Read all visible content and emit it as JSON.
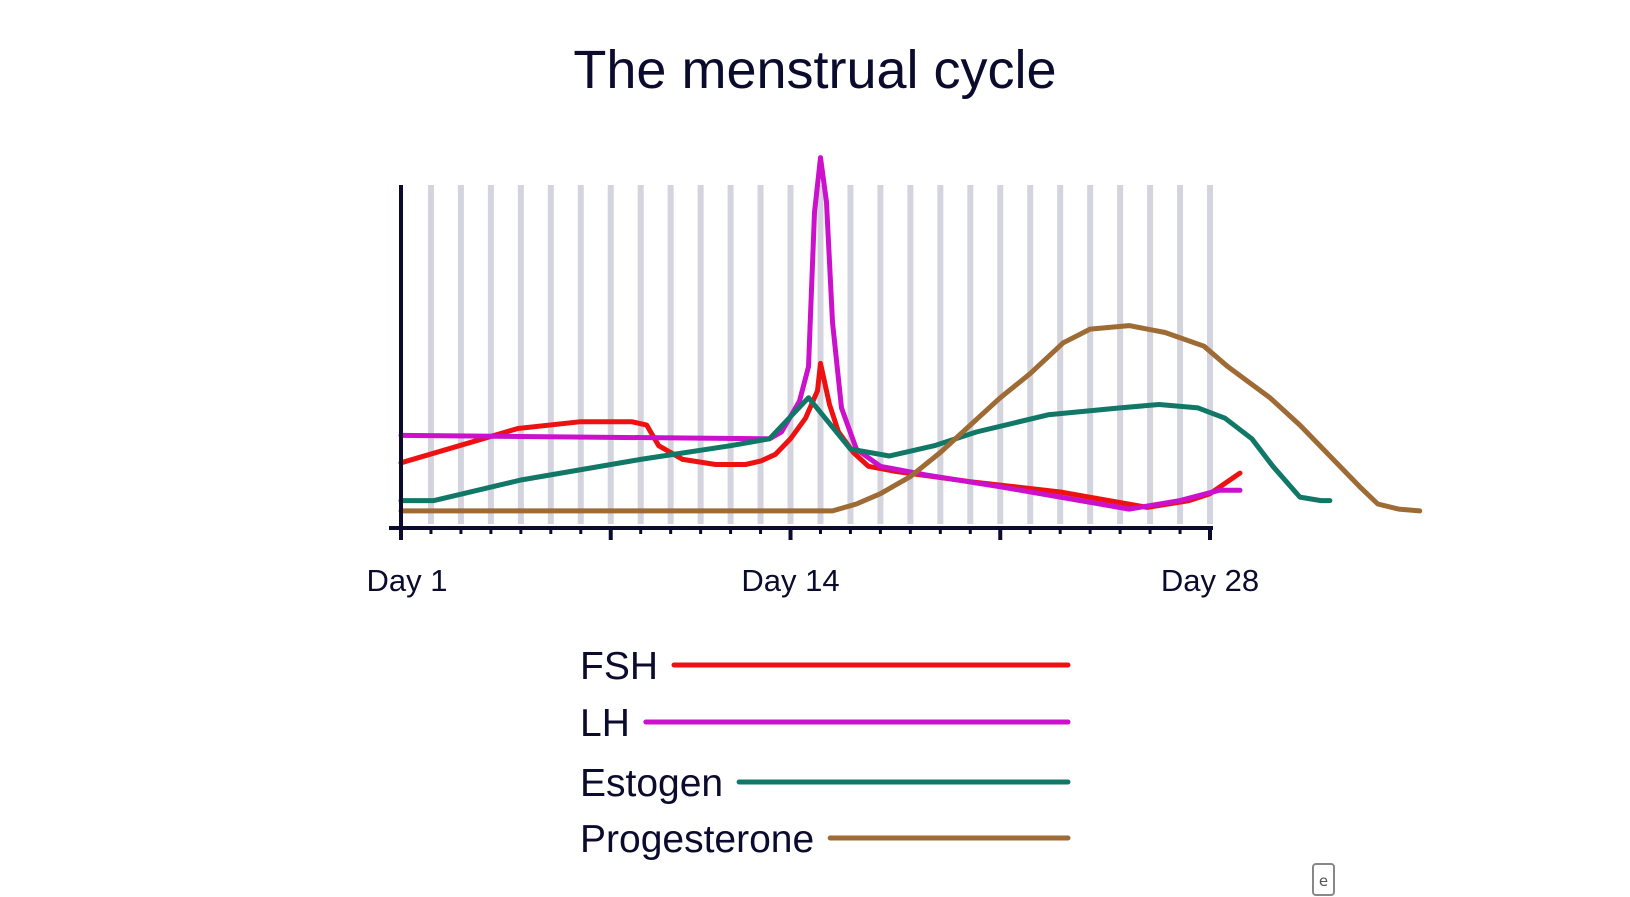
{
  "chart_data": {
    "type": "line",
    "title": "The menstrual cycle",
    "xlabel": "",
    "ylabel": "",
    "xlim": [
      1,
      28
    ],
    "ylim": [
      0,
      100
    ],
    "grid": "vertical",
    "x_tick_labels": [
      {
        "x": 1,
        "label": "Day 1"
      },
      {
        "x": 14,
        "label": "Day 14"
      },
      {
        "x": 28,
        "label": "Day 28"
      }
    ],
    "legend_position": "bottom-center",
    "series": [
      {
        "name": "FSH",
        "color": "#ee1111",
        "points": [
          [
            1,
            19
          ],
          [
            4.9,
            29
          ],
          [
            7,
            31
          ],
          [
            8.7,
            31
          ],
          [
            9.2,
            30
          ],
          [
            9.6,
            24
          ],
          [
            10.4,
            20
          ],
          [
            11.5,
            18.5
          ],
          [
            12.5,
            18.5
          ],
          [
            13,
            19.5
          ],
          [
            13.5,
            21.5
          ],
          [
            14,
            26
          ],
          [
            14.5,
            32
          ],
          [
            14.9,
            40
          ],
          [
            15,
            48
          ],
          [
            15.3,
            36
          ],
          [
            15.6,
            28
          ],
          [
            16.1,
            22
          ],
          [
            16.6,
            18
          ],
          [
            17.5,
            16.5
          ],
          [
            20,
            13.5
          ],
          [
            23,
            10.5
          ],
          [
            25.9,
            6
          ],
          [
            27.3,
            8
          ],
          [
            28,
            10
          ],
          [
            29,
            16
          ]
        ]
      },
      {
        "name": "LH",
        "color": "#cc11cc",
        "points": [
          [
            1,
            27
          ],
          [
            13.3,
            26
          ],
          [
            13.7,
            28
          ],
          [
            14.3,
            37
          ],
          [
            14.6,
            47
          ],
          [
            14.8,
            92
          ],
          [
            15,
            108
          ],
          [
            15.2,
            95
          ],
          [
            15.4,
            60
          ],
          [
            15.7,
            35
          ],
          [
            16.2,
            23
          ],
          [
            17,
            18
          ],
          [
            18.5,
            15.5
          ],
          [
            21,
            12
          ],
          [
            23,
            9
          ],
          [
            25.3,
            5.5
          ],
          [
            27,
            8
          ],
          [
            28.3,
            11
          ],
          [
            29,
            11
          ]
        ]
      },
      {
        "name": "Estogen",
        "color": "#117766",
        "points": [
          [
            1,
            8
          ],
          [
            2.1,
            8
          ],
          [
            5,
            14
          ],
          [
            9,
            20
          ],
          [
            12,
            24
          ],
          [
            13.3,
            26
          ],
          [
            14.6,
            38
          ],
          [
            16,
            23
          ],
          [
            17.3,
            21
          ],
          [
            18.8,
            24
          ],
          [
            20.2,
            28
          ],
          [
            22.6,
            33
          ],
          [
            25,
            35
          ],
          [
            26.3,
            36
          ],
          [
            27.6,
            35
          ],
          [
            28.5,
            32
          ],
          [
            29.4,
            26
          ],
          [
            30.1,
            18
          ],
          [
            31,
            9
          ],
          [
            31.7,
            8
          ],
          [
            32,
            8
          ]
        ]
      },
      {
        "name": "Progesterone",
        "color": "#9e6b35",
        "points": [
          [
            1,
            5
          ],
          [
            14,
            5
          ],
          [
            15.4,
            5
          ],
          [
            16.2,
            7
          ],
          [
            17,
            10
          ],
          [
            18,
            15
          ],
          [
            19,
            22
          ],
          [
            20,
            30
          ],
          [
            21,
            38
          ],
          [
            22,
            45
          ],
          [
            23.1,
            54
          ],
          [
            24,
            58
          ],
          [
            25.3,
            59
          ],
          [
            26.5,
            57
          ],
          [
            27.8,
            53
          ],
          [
            28.6,
            47
          ],
          [
            30,
            38
          ],
          [
            31,
            30
          ],
          [
            32,
            21
          ],
          [
            33,
            12
          ],
          [
            33.6,
            7
          ],
          [
            34.3,
            5.5
          ],
          [
            35,
            5
          ]
        ]
      }
    ]
  },
  "watermark": {
    "glyph": "e"
  }
}
